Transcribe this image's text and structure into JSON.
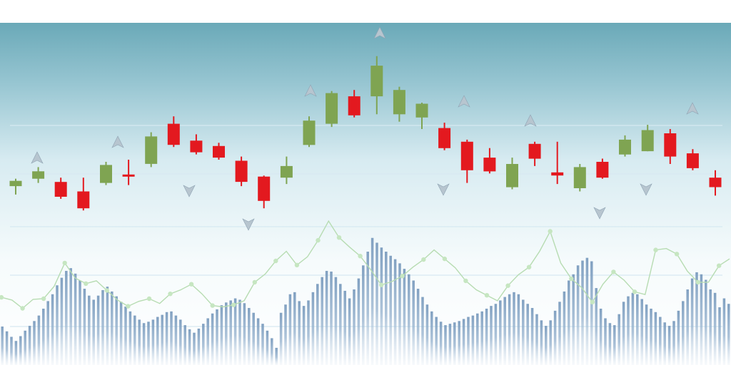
{
  "colors": {
    "background_top": "#6aa9b8",
    "background_mid": "#d7ebf1",
    "background_bottom": "#ffffff",
    "bullish": "#7fa452",
    "bearish": "#e3191f",
    "volume_bar": "#7f9fc0",
    "overlay_line": "#b7dcb2",
    "overlay_marker": "#c6e6c1",
    "signal_arrow": "#b7c5cf",
    "grid": "#d7e9f2"
  },
  "chart_data": [
    {
      "type": "candlestick",
      "title": "",
      "xlabel": "",
      "ylabel": "",
      "grid": true,
      "legend": "none",
      "candles": [
        {
          "open": 13,
          "close": 18,
          "high": 20,
          "low": 5
        },
        {
          "open": 20,
          "close": 27,
          "high": 31,
          "low": 16
        },
        {
          "open": 17,
          "close": 3,
          "high": 21,
          "low": 1
        },
        {
          "open": 8,
          "close": -8,
          "high": 21,
          "low": -10
        },
        {
          "open": 16,
          "close": 33,
          "high": 36,
          "low": 14
        },
        {
          "open": 24,
          "close": 22,
          "high": 38,
          "low": 14
        },
        {
          "open": 34,
          "close": 60,
          "high": 64,
          "low": 31
        },
        {
          "open": 72,
          "close": 52,
          "high": 79,
          "low": 50
        },
        {
          "open": 56,
          "close": 45,
          "high": 62,
          "low": 43
        },
        {
          "open": 51,
          "close": 40,
          "high": 54,
          "low": 38
        },
        {
          "open": 37,
          "close": 17,
          "high": 41,
          "low": 13
        },
        {
          "open": 22,
          "close": -1,
          "high": 23,
          "low": -8
        },
        {
          "open": 21,
          "close": 32,
          "high": 41,
          "low": 15
        },
        {
          "open": 52,
          "close": 75,
          "high": 79,
          "low": 50
        },
        {
          "open": 72,
          "close": 101,
          "high": 103,
          "low": 69
        },
        {
          "open": 98,
          "close": 80,
          "high": 104,
          "low": 78
        },
        {
          "open": 98,
          "close": 127,
          "high": 136,
          "low": 81
        },
        {
          "open": 81,
          "close": 104,
          "high": 107,
          "low": 74
        },
        {
          "open": 78,
          "close": 91,
          "high": 92,
          "low": 67
        },
        {
          "open": 68,
          "close": 49,
          "high": 73,
          "low": 47
        },
        {
          "open": 55,
          "close": 28,
          "high": 57,
          "low": 16
        },
        {
          "open": 40,
          "close": 27,
          "high": 49,
          "low": 25
        },
        {
          "open": 12,
          "close": 34,
          "high": 40,
          "low": 10
        },
        {
          "open": 53,
          "close": 39,
          "high": 55,
          "low": 32
        },
        {
          "open": 26,
          "close": 23,
          "high": 55,
          "low": 15
        },
        {
          "open": 11,
          "close": 31,
          "high": 34,
          "low": 8
        },
        {
          "open": 36,
          "close": 21,
          "high": 39,
          "low": 20
        },
        {
          "open": 43,
          "close": 57,
          "high": 61,
          "low": 41
        },
        {
          "open": 46,
          "close": 66,
          "high": 71,
          "low": 46
        },
        {
          "open": 63,
          "close": 41,
          "high": 67,
          "low": 34
        },
        {
          "open": 44,
          "close": 30,
          "high": 48,
          "low": 28
        },
        {
          "open": 21,
          "close": 12,
          "high": 28,
          "low": 4
        }
      ]
    },
    {
      "type": "bar",
      "title": "",
      "xlabel": "",
      "ylabel": "",
      "bar_count": 160,
      "values": [
        56,
        49,
        41,
        35,
        42,
        50,
        57,
        64,
        72,
        82,
        93,
        103,
        116,
        127,
        137,
        141,
        133,
        123,
        111,
        101,
        95,
        101,
        109,
        114,
        107,
        100,
        92,
        85,
        78,
        72,
        66,
        61,
        63,
        66,
        70,
        73,
        77,
        78,
        72,
        66,
        58,
        52,
        47,
        53,
        60,
        68,
        75,
        81,
        87,
        91,
        94,
        97,
        95,
        90,
        83,
        76,
        68,
        60,
        50,
        39,
        25,
        76,
        88,
        103,
        106,
        93,
        86,
        94,
        106,
        118,
        128,
        137,
        136,
        128,
        118,
        108,
        97,
        110,
        126,
        145,
        165,
        185,
        178,
        171,
        165,
        159,
        154,
        148,
        140,
        132,
        123,
        111,
        99,
        88,
        78,
        70,
        63,
        58,
        60,
        62,
        64,
        67,
        70,
        72,
        75,
        78,
        82,
        86,
        89,
        94,
        99,
        103,
        106,
        103,
        95,
        89,
        83,
        74,
        65,
        57,
        65,
        79,
        92,
        107,
        123,
        132,
        145,
        152,
        156,
        151,
        112,
        82,
        68,
        61,
        58,
        74,
        92,
        100,
        105,
        103,
        96,
        88,
        82,
        77,
        70,
        62,
        57,
        64,
        79,
        93,
        110,
        126,
        135,
        132,
        124,
        110,
        105,
        84,
        97,
        89
      ],
      "overlay_line": {
        "values": [
          84,
          80,
          68,
          81,
          82,
          100,
          134,
          112,
          104,
          108,
          94,
          80,
          71,
          78,
          82,
          75,
          89,
          95,
          103,
          89,
          72,
          70,
          73,
          79,
          106,
          118,
          137,
          151,
          131,
          143,
          167,
          195,
          171,
          157,
          144,
          124,
          102,
          107,
          115,
          128,
          139,
          153,
          140,
          127,
          108,
          95,
          87,
          79,
          101,
          117,
          128,
          151,
          180,
          134,
          111,
          98,
          77,
          103,
          121,
          109,
          92,
          88,
          153,
          155,
          147,
          122,
          106,
          106,
          130,
          140
        ]
      }
    }
  ]
}
